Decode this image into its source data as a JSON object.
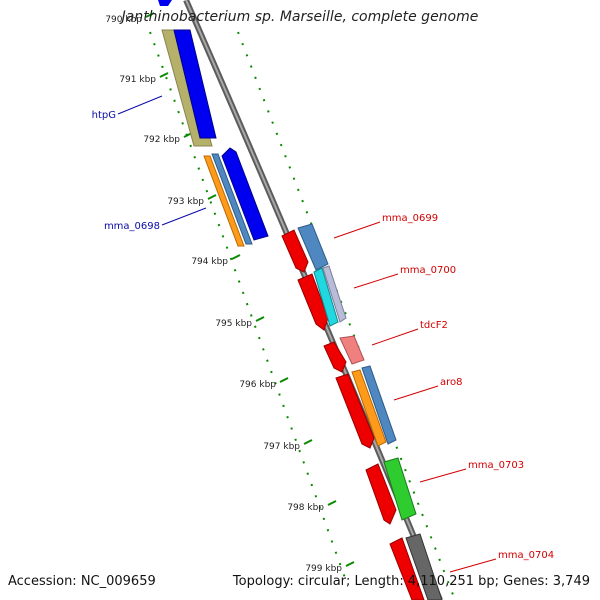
{
  "title": "Janthinobacterium sp. Marseille, complete genome",
  "footer": {
    "accession": "Accession: NC_009659",
    "summary": "Topology: circular; Length: 4,110,251 bp; Genes: 3,749"
  },
  "colors": {
    "backbone": "#7f7f7f",
    "tick_green": "#0a8a00",
    "label_blue": "#0a0aa8",
    "label_red": "#d20000",
    "blue": "#0000f0",
    "olive": "#b5b06a",
    "orange": "#ff9a1a",
    "steelblue": "#4f88c0",
    "red": "#ee0000",
    "cyan": "#22d8e0",
    "lightpink": "#f08080",
    "green": "#2ecc2e",
    "darkgray": "#666666",
    "lavender": "#b8bcd8"
  },
  "scale": {
    "unit": "kbp",
    "ticks": [
      {
        "label": "790 kbp",
        "kbp": 790
      },
      {
        "label": "791 kbp",
        "kbp": 791
      },
      {
        "label": "792 kbp",
        "kbp": 792
      },
      {
        "label": "793 kbp",
        "kbp": 793
      },
      {
        "label": "794 kbp",
        "kbp": 794
      },
      {
        "label": "795 kbp",
        "kbp": 795
      },
      {
        "label": "796 kbp",
        "kbp": 796
      },
      {
        "label": "797 kbp",
        "kbp": 797
      },
      {
        "label": "798 kbp",
        "kbp": 798
      },
      {
        "label": "799 kbp",
        "kbp": 799
      }
    ]
  },
  "gene_labels": [
    {
      "text": "htpG",
      "strand": "minus"
    },
    {
      "text": "mma_0698",
      "strand": "minus"
    },
    {
      "text": "mma_0699",
      "strand": "plus"
    },
    {
      "text": "mma_0700",
      "strand": "plus"
    },
    {
      "text": "tdcF2",
      "strand": "plus"
    },
    {
      "text": "aro8",
      "strand": "plus"
    },
    {
      "text": "mma_0703",
      "strand": "plus"
    },
    {
      "text": "mma_0704",
      "strand": "plus"
    }
  ]
}
